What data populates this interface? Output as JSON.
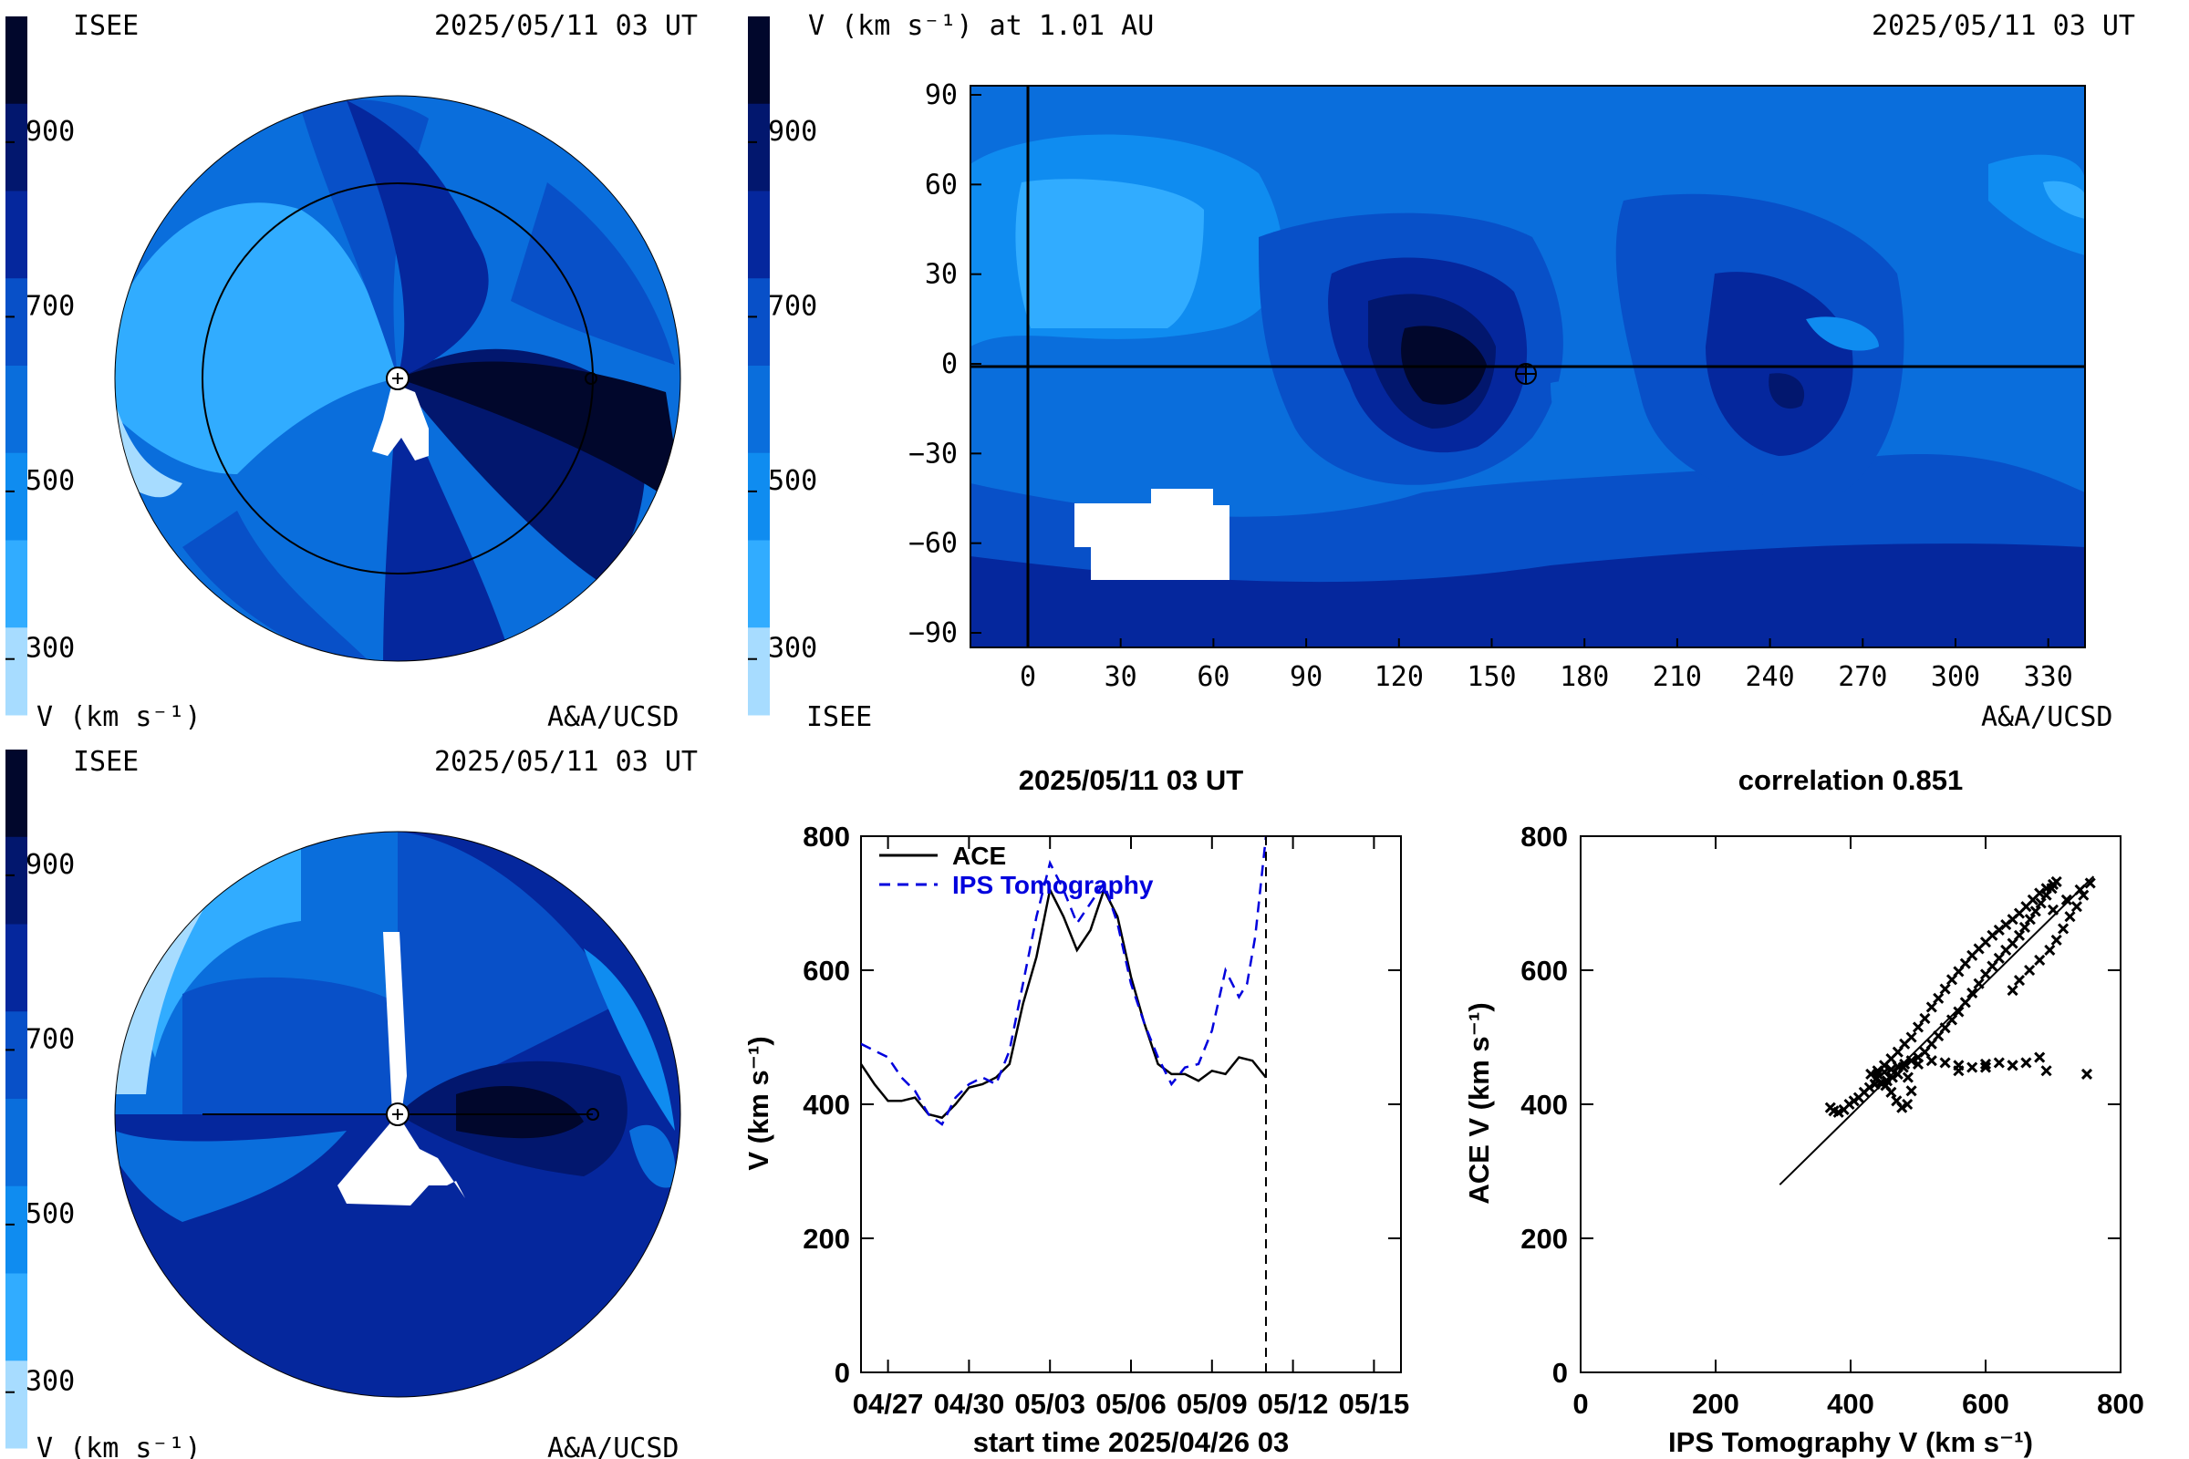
{
  "colors": {
    "c200": "#a7dcff",
    "c300": "#31acff",
    "c400": "#0f8cf0",
    "c500": "#0a6edc",
    "c600": "#0850c8",
    "c700": "#05279d",
    "c800": "#02176e",
    "c900": "#01072c",
    "ace": "#000000",
    "ips": "#0000dd"
  },
  "colorbar": {
    "ticks": [
      "900",
      "700",
      "500",
      "300"
    ],
    "legend": "V (km s⁻¹)"
  },
  "panel1": {
    "label_left": "ISEE",
    "timestamp": "2025/05/11 03 UT",
    "units_label": "V (km s⁻¹)",
    "credit": "A&A/UCSD"
  },
  "panel2": {
    "title": "V (km s⁻¹) at 1.01 AU",
    "timestamp": "2025/05/11 03 UT",
    "label_left": "ISEE",
    "credit": "A&A/UCSD",
    "x_ticks": [
      "0",
      "30",
      "60",
      "90",
      "120",
      "150",
      "180",
      "210",
      "240",
      "270",
      "300",
      "330"
    ],
    "y_ticks": [
      "90",
      "60",
      "30",
      "0",
      "−30",
      "−60",
      "−90"
    ]
  },
  "panel3": {
    "label_left": "ISEE",
    "timestamp": "2025/05/11 03 UT",
    "units_label": "V (km s⁻¹)",
    "credit": "A&A/UCSD"
  },
  "chart_data": [
    {
      "type": "line",
      "title": "2025/05/11 03 UT",
      "xlabel": "start time 2025/04/26 03",
      "ylabel": "V (km s⁻¹)",
      "x_ticks": [
        "04/27",
        "04/30",
        "05/03",
        "05/06",
        "05/09",
        "05/12",
        "05/15"
      ],
      "y_ticks": [
        "0",
        "200",
        "400",
        "600",
        "800"
      ],
      "xlim": [
        0,
        20
      ],
      "ylim": [
        0,
        800
      ],
      "marker_day": 15.0,
      "series": [
        {
          "name": "ACE",
          "x": [
            0,
            0.5,
            1,
            1.5,
            2,
            2.5,
            3,
            3.5,
            4,
            4.5,
            5,
            5.5,
            6,
            6.5,
            7,
            7.5,
            8,
            8.5,
            9,
            9.5,
            10,
            10.5,
            11,
            11.5,
            12,
            12.5,
            13,
            13.5,
            14,
            14.5,
            15
          ],
          "y": [
            460,
            430,
            405,
            405,
            410,
            385,
            380,
            400,
            425,
            430,
            440,
            460,
            550,
            620,
            720,
            680,
            630,
            660,
            720,
            680,
            590,
            520,
            460,
            445,
            445,
            435,
            450,
            445,
            470,
            465,
            440
          ]
        },
        {
          "name": "IPS Tomography",
          "x": [
            0,
            0.5,
            1,
            1.5,
            2,
            2.5,
            3,
            3.5,
            4,
            4.5,
            5,
            5.5,
            6,
            6.5,
            7,
            7.5,
            8,
            8.5,
            9,
            9.5,
            10,
            10.5,
            11,
            11.5,
            12,
            12.5,
            13,
            13.5,
            14,
            14.3,
            14.6,
            15
          ],
          "y": [
            490,
            480,
            470,
            440,
            420,
            385,
            370,
            410,
            430,
            440,
            430,
            480,
            580,
            680,
            760,
            720,
            670,
            700,
            730,
            670,
            580,
            520,
            470,
            430,
            455,
            460,
            510,
            600,
            560,
            580,
            650,
            800
          ]
        }
      ]
    },
    {
      "type": "scatter",
      "title": "correlation 0.851",
      "xlabel": "IPS Tomography V (km s⁻¹)",
      "ylabel": "ACE V (km s⁻¹)",
      "x_ticks": [
        "0",
        "200",
        "400",
        "600",
        "800"
      ],
      "y_ticks": [
        "0",
        "200",
        "400",
        "600",
        "800"
      ],
      "xlim": [
        0,
        800
      ],
      "ylim": [
        0,
        800
      ],
      "fit_line": {
        "x": [
          295,
          760
        ],
        "y": [
          280,
          740
        ]
      },
      "points": {
        "x": [
          370,
          375,
          382,
          390,
          398,
          405,
          412,
          420,
          428,
          436,
          444,
          452,
          460,
          468,
          476,
          484,
          490,
          485,
          478,
          470,
          462,
          454,
          446,
          438,
          430,
          440,
          450,
          460,
          470,
          480,
          490,
          500,
          510,
          520,
          530,
          540,
          550,
          560,
          570,
          580,
          590,
          600,
          610,
          620,
          630,
          640,
          650,
          660,
          670,
          680,
          690,
          700,
          705,
          698,
          690,
          682,
          674,
          666,
          658,
          650,
          640,
          630,
          620,
          610,
          600,
          590,
          580,
          570,
          560,
          550,
          540,
          530,
          520,
          510,
          500,
          490,
          480,
          470,
          460,
          450,
          440,
          500,
          520,
          540,
          560,
          580,
          600,
          620,
          640,
          660,
          680,
          700,
          720,
          740,
          755,
          745,
          735,
          725,
          715,
          705,
          695,
          680,
          665,
          650,
          640,
          560,
          600,
          640,
          690,
          750
        ],
        "y": [
          395,
          390,
          388,
          392,
          400,
          405,
          410,
          418,
          425,
          430,
          432,
          428,
          418,
          405,
          395,
          400,
          420,
          440,
          455,
          445,
          440,
          435,
          432,
          438,
          445,
          450,
          458,
          468,
          478,
          490,
          500,
          515,
          528,
          545,
          558,
          572,
          586,
          598,
          610,
          622,
          632,
          642,
          652,
          660,
          668,
          676,
          685,
          695,
          705,
          715,
          722,
          728,
          732,
          722,
          712,
          700,
          688,
          676,
          664,
          652,
          640,
          630,
          618,
          606,
          594,
          580,
          566,
          552,
          538,
          526,
          514,
          502,
          490,
          478,
          470,
          465,
          460,
          456,
          452,
          448,
          445,
          460,
          465,
          462,
          458,
          455,
          460,
          462,
          458,
          462,
          470,
          690,
          705,
          720,
          730,
          712,
          695,
          680,
          662,
          645,
          630,
          615,
          600,
          585,
          570,
          450,
          455,
          458,
          450,
          445
        ]
      },
      "series": [
        {
          "name": "",
          "x": [],
          "y": []
        }
      ]
    }
  ]
}
